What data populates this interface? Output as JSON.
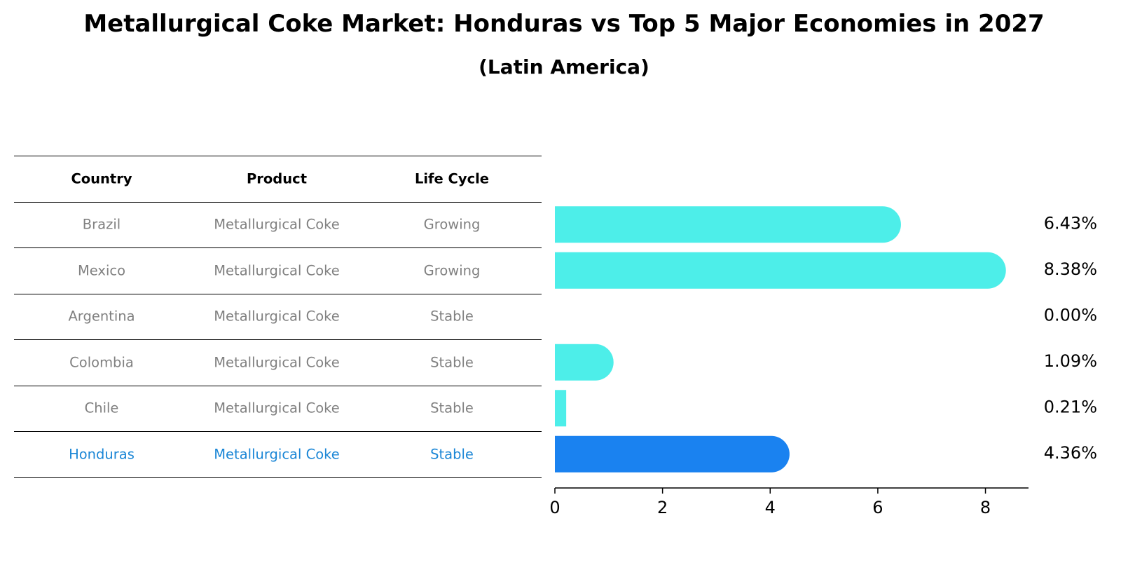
{
  "title": "Metallurgical Coke Market: Honduras vs Top 5 Major Economies in 2027",
  "subtitle": "(Latin America)",
  "table": {
    "headers": [
      "Country",
      "Product",
      "Life Cycle"
    ],
    "rows": [
      {
        "country": "Brazil",
        "product": "Metallurgical Coke",
        "life_cycle": "Growing"
      },
      {
        "country": "Mexico",
        "product": "Metallurgical Coke",
        "life_cycle": "Growing"
      },
      {
        "country": "Argentina",
        "product": "Metallurgical Coke",
        "life_cycle": "Stable"
      },
      {
        "country": "Colombia",
        "product": "Metallurgical Coke",
        "life_cycle": "Stable"
      },
      {
        "country": "Chile",
        "product": "Metallurgical Coke",
        "life_cycle": "Stable"
      },
      {
        "country": "Honduras",
        "product": "Metallurgical Coke",
        "life_cycle": "Stable"
      }
    ]
  },
  "colors": {
    "bar": "#4deee9",
    "highlight_bar": "#1a82f0",
    "highlight_text": "#1a86d6",
    "muted_text": "#808080"
  },
  "chart_data": {
    "type": "bar",
    "orientation": "horizontal",
    "categories": [
      "Brazil",
      "Mexico",
      "Argentina",
      "Colombia",
      "Chile",
      "Honduras"
    ],
    "values": [
      6.43,
      8.38,
      0.0,
      1.09,
      0.21,
      4.36
    ],
    "value_labels": [
      "6.43%",
      "8.38%",
      "0.00%",
      "1.09%",
      "0.21%",
      "4.36%"
    ],
    "highlight": "Honduras",
    "xlim": [
      0,
      8.8
    ],
    "xticks": [
      0,
      2,
      4,
      6,
      8
    ],
    "xtick_labels": [
      "0",
      "2",
      "4",
      "6",
      "8"
    ],
    "title": "Metallurgical Coke Market: Honduras vs Top 5 Major Economies in 2027",
    "xlabel": "",
    "ylabel": ""
  }
}
